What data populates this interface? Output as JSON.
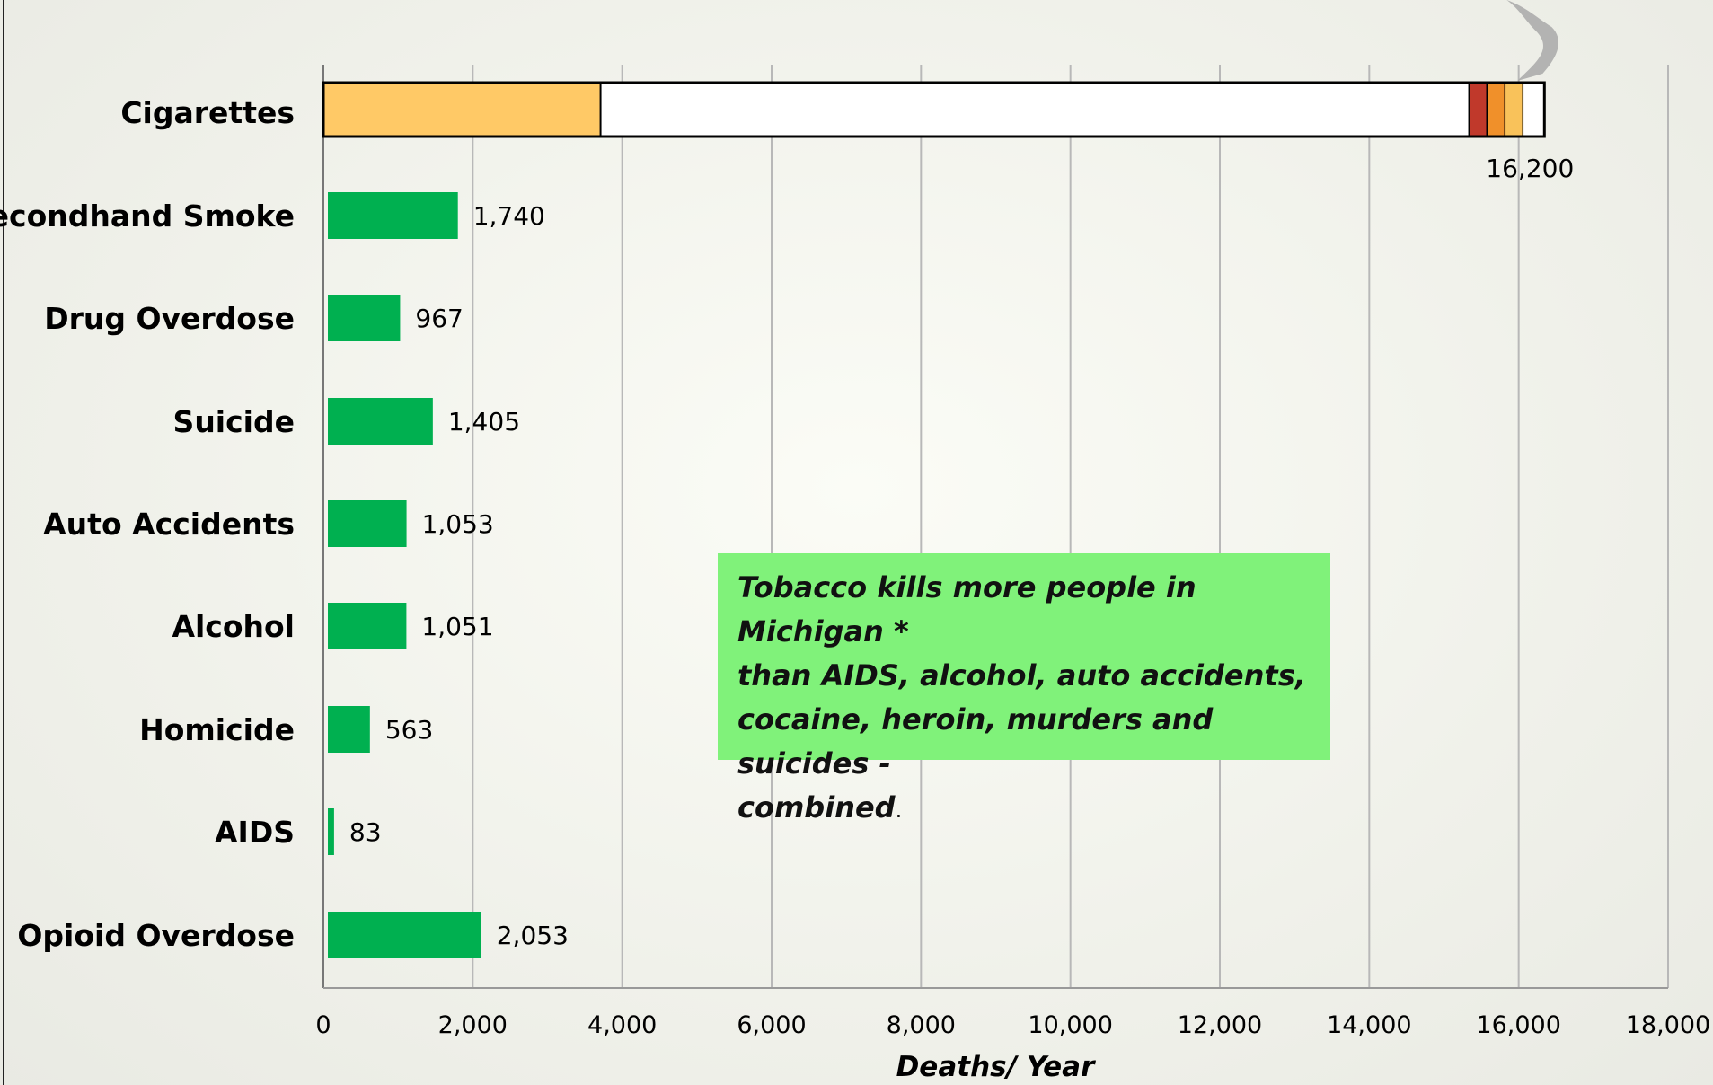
{
  "chart_data": {
    "type": "bar",
    "orientation": "horizontal",
    "categories": [
      "Cigarettes",
      "Secondhand Smoke",
      "Drug Overdose",
      "Suicide",
      "Auto Accidents",
      "Alcohol",
      "Homicide",
      "AIDS",
      "Opioid Overdose"
    ],
    "values": [
      16200,
      1740,
      967,
      1405,
      1053,
      1051,
      563,
      83,
      2053
    ],
    "value_labels": [
      "16,200",
      "1,740",
      "967",
      "1,405",
      "1,053",
      "1,051",
      "563",
      "83",
      "2,053"
    ],
    "xlabel": "Deaths/ Year",
    "xlim": [
      0,
      18000
    ],
    "xticks": [
      0,
      2000,
      4000,
      6000,
      8000,
      10000,
      12000,
      14000,
      16000,
      18000
    ],
    "xtick_labels": [
      "0",
      "2,000",
      "4,000",
      "6,000",
      "8,000",
      "10,000",
      "12,000",
      "14,000",
      "16,000",
      "18,000"
    ],
    "grid": "vertical",
    "colors": {
      "bar": "#00b050",
      "cigarette_filter": "#ffc966",
      "cigarette_paper": "#ffffff",
      "cigarette_ember": [
        "#c0392b",
        "#f0902a",
        "#f9c25a"
      ],
      "smoke": "#a8a8a8"
    },
    "annotation": {
      "lines": [
        "Tobacco kills more people in Michigan *",
        "than AIDS, alcohol, auto accidents,",
        "cocaine, heroin, murders and suicides -",
        "combined"
      ],
      "trailing": ".",
      "background": "#80f27a"
    }
  }
}
